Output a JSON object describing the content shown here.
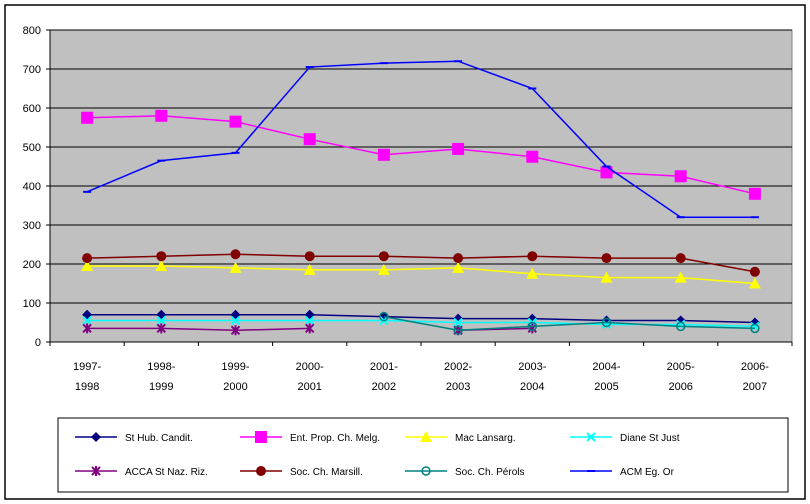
{
  "chart_data": {
    "type": "line",
    "categories": [
      [
        "1997-",
        "1998"
      ],
      [
        "1998-",
        "1999"
      ],
      [
        "1999-",
        "2000"
      ],
      [
        "2000-",
        "2001"
      ],
      [
        "2001-",
        "2002"
      ],
      [
        "2002-",
        "2003"
      ],
      [
        "2003-",
        "2004"
      ],
      [
        "2004-",
        "2005"
      ],
      [
        "2005-",
        "2006"
      ],
      [
        "2006-",
        "2007"
      ]
    ],
    "ylim": [
      0,
      800
    ],
    "yticks": [
      0,
      100,
      200,
      300,
      400,
      500,
      600,
      700,
      800
    ],
    "grid": true,
    "plot_background": "#c0c0c0",
    "legend_position": "bottom",
    "series": [
      {
        "name": "St Hub. Candit.",
        "color": "#000080",
        "marker": "diamond",
        "values": [
          70,
          70,
          70,
          70,
          65,
          60,
          60,
          55,
          55,
          50
        ]
      },
      {
        "name": "Ent. Prop. Ch. Melg.",
        "color": "#ff00ff",
        "marker": "square",
        "values": [
          575,
          580,
          565,
          520,
          480,
          495,
          475,
          435,
          425,
          380
        ]
      },
      {
        "name": "Mac Lansarg.",
        "color": "#ffff00",
        "marker": "triangle",
        "values": [
          195,
          195,
          190,
          185,
          185,
          190,
          175,
          165,
          165,
          150
        ]
      },
      {
        "name": "Diane St Just",
        "color": "#00ffff",
        "marker": "x",
        "values": [
          55,
          55,
          55,
          55,
          55,
          50,
          50,
          45,
          45,
          40
        ]
      },
      {
        "name": "ACCA St Naz. Riz.",
        "color": "#800080",
        "marker": "star",
        "values": [
          35,
          35,
          30,
          35,
          null,
          30,
          35,
          null,
          null,
          null
        ]
      },
      {
        "name": "Soc. Ch. Marsill.",
        "color": "#800000",
        "marker": "circle",
        "values": [
          215,
          220,
          225,
          220,
          220,
          215,
          220,
          215,
          215,
          180
        ]
      },
      {
        "name": "Soc. Ch. Pérols",
        "color": "#008080",
        "marker": "hollow-circle",
        "values": [
          null,
          null,
          null,
          null,
          65,
          30,
          40,
          50,
          40,
          35
        ]
      },
      {
        "name": "ACM Eg. Or",
        "color": "#0000ff",
        "marker": "dash",
        "values": [
          385,
          465,
          485,
          705,
          715,
          720,
          650,
          450,
          320,
          320
        ]
      }
    ]
  }
}
